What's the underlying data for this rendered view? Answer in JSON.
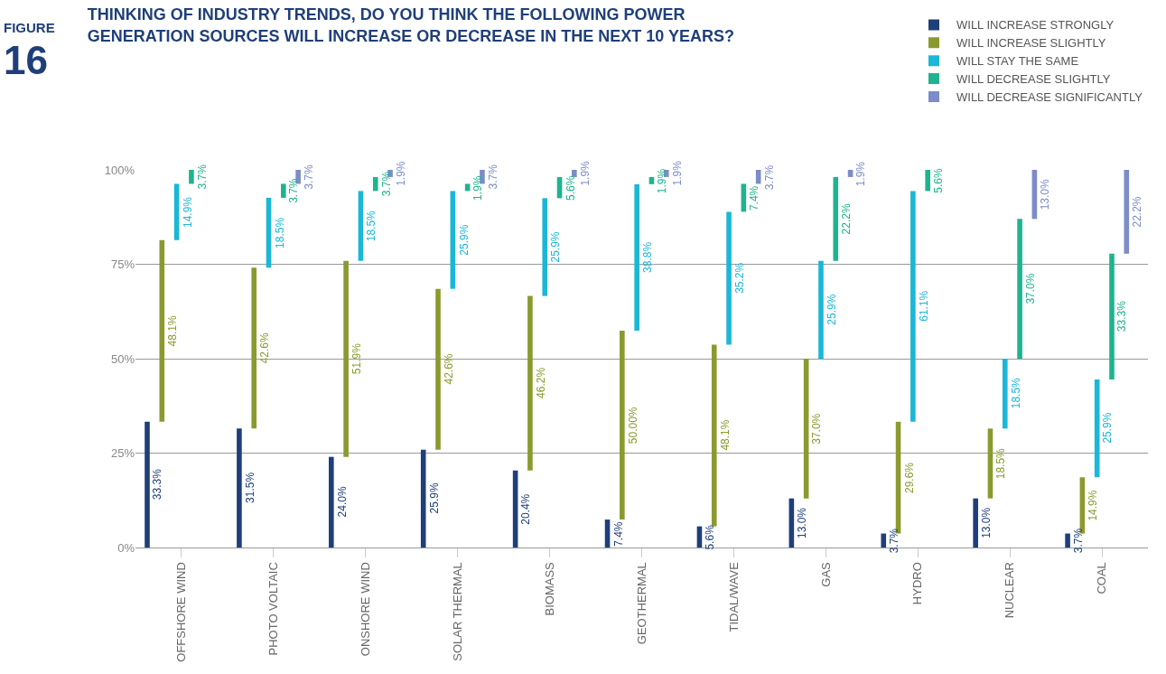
{
  "chart_data": {
    "type": "bar",
    "stacked": true,
    "title": "THINKING OF INDUSTRY TRENDS, DO YOU THINK THE FOLLOWING POWER\nGENERATION SOURCES WILL INCREASE OR DECREASE IN THE NEXT 10 YEARS?",
    "annotations": [
      "FIGURE",
      "16"
    ],
    "categories": [
      "OFFSHORE WIND",
      "PHOTO VOLTAIC",
      "ONSHORE WIND",
      "SOLAR THERMAL",
      "BIOMASS",
      "GEOTHERMAL",
      "TIDAL/WAVE",
      "GAS",
      "HYDRO",
      "NUCLEAR",
      "COAL"
    ],
    "series": [
      {
        "name": "WILL INCREASE STRONGLY",
        "color": "#1f3f7a",
        "values": [
          33.3,
          31.5,
          24.0,
          25.9,
          20.4,
          7.4,
          5.6,
          13.0,
          3.7,
          13.0,
          3.7
        ],
        "value_labels": [
          "33.3%",
          "31.5%",
          "24.0%",
          "25.9%",
          "20.4%",
          "7.4%",
          "5.6%",
          "13.0%",
          "3.7%",
          "13.0%",
          "3.7%"
        ]
      },
      {
        "name": "WILL INCREASE SLIGHTLY",
        "color": "#8a9a2e",
        "values": [
          48.1,
          42.6,
          51.9,
          42.6,
          46.2,
          50.0,
          48.1,
          37.0,
          29.6,
          18.5,
          14.9
        ],
        "value_labels": [
          "48.1%",
          "42.6%",
          "51.9%",
          "42.6%",
          "46.2%",
          "50.00%",
          "48.1%",
          "37.0%",
          "29.6%",
          "18.5%",
          "14.9%"
        ]
      },
      {
        "name": "WILL STAY THE SAME",
        "color": "#1ab7d8",
        "values": [
          14.9,
          18.5,
          18.5,
          25.9,
          25.9,
          38.8,
          35.2,
          25.9,
          61.1,
          18.5,
          25.9
        ],
        "value_labels": [
          "14.9%",
          "18.5%",
          "18.5%",
          "25.9%",
          "25.9%",
          "38.8%",
          "35.2%",
          "25.9%",
          "61.1%",
          "18.5%",
          "25.9%"
        ]
      },
      {
        "name": "WILL DECREASE SLIGHTLY",
        "color": "#1fb38f",
        "values": [
          3.7,
          3.7,
          3.7,
          1.9,
          5.6,
          1.9,
          7.4,
          22.2,
          5.6,
          37.0,
          33.3
        ],
        "value_labels": [
          "3.7%",
          "3.7%",
          "3.7%",
          "1.9%",
          "5.6%",
          "1.9%",
          "7.4%",
          "22.2%",
          "5.6%",
          "37.0%",
          "33.3%"
        ]
      },
      {
        "name": "WILL DECREASE SIGNIFICANTLY",
        "color": "#7b8cc8",
        "values": [
          null,
          3.7,
          1.9,
          3.7,
          1.9,
          1.9,
          3.7,
          1.9,
          null,
          13.0,
          22.2
        ],
        "value_labels": [
          null,
          "3.7%",
          "1.9%",
          "3.7%",
          "1.9%",
          "1.9%",
          "3.7%",
          "1.9%",
          null,
          "13.0%",
          "22.2%"
        ]
      }
    ],
    "ylim": [
      0,
      100
    ],
    "yticks": [
      {
        "value": 0,
        "label": "0%"
      },
      {
        "value": 25,
        "label": "25%"
      },
      {
        "value": 50,
        "label": "50%"
      },
      {
        "value": 75,
        "label": "75%"
      },
      {
        "value": 100,
        "label": "100%"
      }
    ],
    "grid": "y",
    "legend": "top right"
  }
}
